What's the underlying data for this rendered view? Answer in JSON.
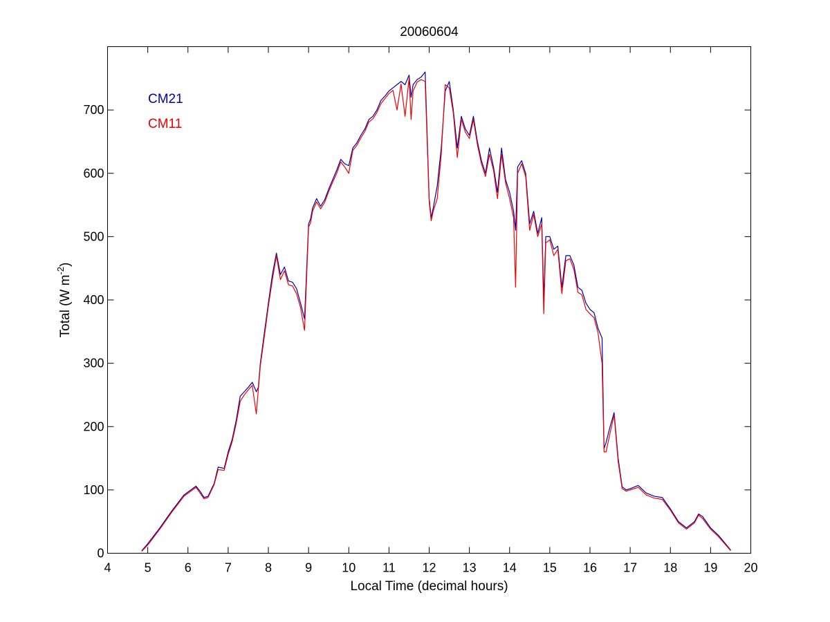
{
  "chart_data": {
    "type": "line",
    "title": "20060604",
    "xlabel": "Local Time (decimal hours)",
    "ylabel_main": "Total (W m",
    "ylabel_sup": "-2",
    "ylabel_end": ")",
    "xlim": [
      4,
      20
    ],
    "ylim": [
      0,
      800
    ],
    "xticks": [
      4,
      5,
      6,
      7,
      8,
      9,
      10,
      11,
      12,
      13,
      14,
      15,
      16,
      17,
      18,
      19,
      20
    ],
    "yticks": [
      0,
      100,
      200,
      300,
      400,
      500,
      600,
      700
    ],
    "grid": false,
    "legend_placement": "top-left",
    "series": [
      {
        "name": "CM21",
        "color": "#0000aa",
        "x": [
          4.85,
          5.0,
          5.3,
          5.6,
          5.9,
          6.2,
          6.3,
          6.4,
          6.5,
          6.65,
          6.75,
          6.9,
          7.0,
          7.1,
          7.2,
          7.3,
          7.4,
          7.5,
          7.6,
          7.7,
          7.75,
          7.8,
          7.9,
          8.0,
          8.1,
          8.2,
          8.3,
          8.4,
          8.5,
          8.6,
          8.7,
          8.8,
          8.9,
          9.0,
          9.05,
          9.1,
          9.2,
          9.3,
          9.4,
          9.5,
          9.6,
          9.7,
          9.8,
          9.9,
          10.0,
          10.1,
          10.2,
          10.3,
          10.4,
          10.5,
          10.6,
          10.7,
          10.8,
          10.9,
          11.0,
          11.1,
          11.2,
          11.3,
          11.4,
          11.5,
          11.55,
          11.6,
          11.7,
          11.8,
          11.9,
          12.0,
          12.05,
          12.1,
          12.2,
          12.3,
          12.4,
          12.5,
          12.6,
          12.7,
          12.8,
          12.9,
          13.0,
          13.1,
          13.2,
          13.3,
          13.4,
          13.5,
          13.6,
          13.7,
          13.8,
          13.9,
          14.0,
          14.1,
          14.15,
          14.2,
          14.3,
          14.4,
          14.5,
          14.6,
          14.7,
          14.8,
          14.85,
          14.9,
          15.0,
          15.1,
          15.2,
          15.3,
          15.4,
          15.5,
          15.6,
          15.7,
          15.8,
          15.9,
          16.0,
          16.1,
          16.2,
          16.3,
          16.35,
          16.4,
          16.5,
          16.6,
          16.7,
          16.8,
          16.9,
          17.0,
          17.2,
          17.4,
          17.6,
          17.8,
          18.0,
          18.2,
          18.4,
          18.6,
          18.7,
          18.8,
          19.0,
          19.2,
          19.5
        ],
        "y": [
          4,
          15,
          40,
          67,
          92,
          106,
          98,
          88,
          90,
          110,
          136,
          134,
          160,
          180,
          210,
          248,
          255,
          262,
          270,
          255,
          262,
          300,
          348,
          395,
          440,
          474,
          440,
          452,
          430,
          428,
          418,
          395,
          370,
          520,
          528,
          545,
          560,
          548,
          558,
          575,
          590,
          605,
          622,
          615,
          612,
          640,
          648,
          660,
          670,
          685,
          690,
          700,
          715,
          722,
          730,
          735,
          740,
          745,
          740,
          755,
          720,
          740,
          748,
          752,
          760,
          560,
          530,
          545,
          580,
          640,
          730,
          745,
          700,
          640,
          690,
          670,
          660,
          690,
          650,
          620,
          600,
          640,
          610,
          570,
          640,
          590,
          570,
          540,
          510,
          610,
          620,
          600,
          520,
          540,
          505,
          530,
          400,
          500,
          500,
          480,
          485,
          420,
          470,
          470,
          455,
          420,
          415,
          395,
          385,
          380,
          355,
          340,
          165,
          175,
          200,
          222,
          150,
          105,
          100,
          102,
          107,
          95,
          90,
          88,
          70,
          50,
          40,
          50,
          62,
          58,
          40,
          28,
          5
        ]
      },
      {
        "name": "CM11",
        "color": "#ee0000",
        "x": [
          4.85,
          5.0,
          5.3,
          5.6,
          5.9,
          6.2,
          6.3,
          6.4,
          6.5,
          6.65,
          6.75,
          6.9,
          7.0,
          7.1,
          7.2,
          7.3,
          7.4,
          7.5,
          7.6,
          7.7,
          7.75,
          7.8,
          7.9,
          8.0,
          8.1,
          8.2,
          8.3,
          8.4,
          8.5,
          8.6,
          8.7,
          8.8,
          8.9,
          9.0,
          9.05,
          9.1,
          9.2,
          9.3,
          9.4,
          9.5,
          9.6,
          9.7,
          9.8,
          9.9,
          10.0,
          10.1,
          10.2,
          10.3,
          10.4,
          10.5,
          10.6,
          10.7,
          10.8,
          10.9,
          11.0,
          11.1,
          11.2,
          11.3,
          11.4,
          11.5,
          11.55,
          11.6,
          11.7,
          11.8,
          11.9,
          12.0,
          12.05,
          12.1,
          12.2,
          12.3,
          12.4,
          12.5,
          12.6,
          12.7,
          12.8,
          12.9,
          13.0,
          13.1,
          13.2,
          13.3,
          13.4,
          13.5,
          13.6,
          13.7,
          13.8,
          13.9,
          14.0,
          14.1,
          14.15,
          14.2,
          14.3,
          14.4,
          14.5,
          14.6,
          14.7,
          14.8,
          14.85,
          14.9,
          15.0,
          15.1,
          15.2,
          15.3,
          15.4,
          15.5,
          15.6,
          15.7,
          15.8,
          15.9,
          16.0,
          16.1,
          16.2,
          16.3,
          16.35,
          16.4,
          16.5,
          16.6,
          16.7,
          16.8,
          16.9,
          17.0,
          17.2,
          17.4,
          17.6,
          17.8,
          18.0,
          18.2,
          18.4,
          18.6,
          18.7,
          18.8,
          19.0,
          19.2,
          19.5
        ],
        "y": [
          3,
          13,
          38,
          65,
          90,
          104,
          95,
          86,
          88,
          108,
          132,
          131,
          156,
          176,
          205,
          240,
          250,
          258,
          265,
          220,
          258,
          296,
          342,
          390,
          432,
          470,
          432,
          446,
          424,
          422,
          410,
          388,
          352,
          515,
          522,
          540,
          555,
          544,
          554,
          571,
          586,
          600,
          618,
          610,
          600,
          636,
          644,
          656,
          666,
          681,
          686,
          696,
          710,
          718,
          726,
          731,
          700,
          741,
          690,
          750,
          685,
          730,
          744,
          748,
          745,
          555,
          525,
          540,
          560,
          630,
          740,
          735,
          695,
          625,
          685,
          665,
          655,
          685,
          645,
          615,
          595,
          630,
          605,
          560,
          630,
          585,
          560,
          530,
          420,
          600,
          615,
          595,
          510,
          535,
          500,
          520,
          378,
          490,
          495,
          470,
          480,
          410,
          462,
          465,
          448,
          412,
          408,
          385,
          378,
          372,
          348,
          300,
          160,
          160,
          190,
          218,
          145,
          102,
          98,
          100,
          104,
          92,
          87,
          85,
          68,
          48,
          38,
          48,
          60,
          55,
          38,
          26,
          4
        ]
      }
    ]
  }
}
